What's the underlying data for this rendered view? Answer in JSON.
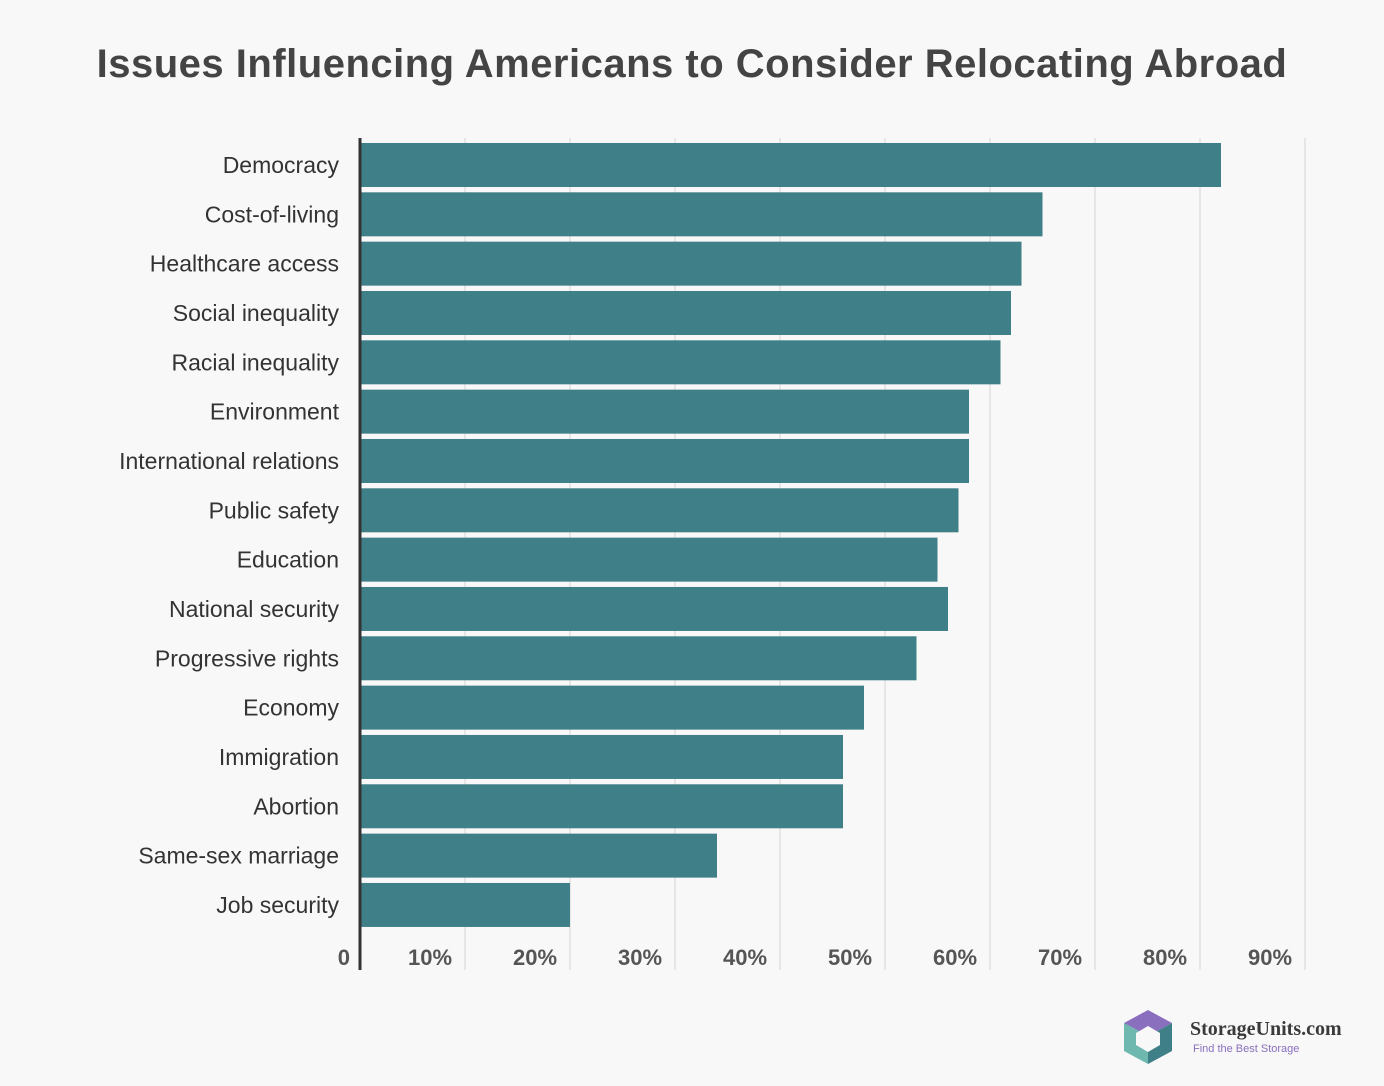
{
  "chart_data": {
    "type": "bar",
    "orientation": "horizontal",
    "title": "Issues Influencing Americans to Consider Relocating Abroad",
    "xlabel": "",
    "ylabel": "",
    "xlim": [
      0,
      90
    ],
    "grid": true,
    "tick_labels": [
      "0",
      "10%",
      "20%",
      "30%",
      "40%",
      "50%",
      "60%",
      "70%",
      "80%",
      "90%"
    ],
    "tick_values": [
      0,
      10,
      20,
      30,
      40,
      50,
      60,
      70,
      80,
      90
    ],
    "categories": [
      "Democracy",
      "Cost-of-living",
      "Healthcare access",
      "Social inequality",
      "Racial inequality",
      "Environment",
      "International relations",
      "Public safety",
      "Education",
      "National security",
      "Progressive rights",
      "Economy",
      "Immigration",
      "Abortion",
      "Same-sex marriage",
      "Job security"
    ],
    "values": [
      82,
      65,
      63,
      62,
      61,
      58,
      58,
      57,
      55,
      56,
      53,
      48,
      46,
      46,
      34,
      20
    ],
    "bar_color": "#3f7f87"
  },
  "brand": {
    "name": "StorageUnits.com",
    "tagline": "Find the Best Storage"
  },
  "colors": {
    "background": "#f8f8f8",
    "bar": "#3f7f87",
    "grid": "#e0e0e0",
    "axis": "#333333",
    "logo_purple": "#8a6fbf",
    "logo_teal": "#6fb8b0",
    "logo_dark_teal": "#3f7f87"
  }
}
